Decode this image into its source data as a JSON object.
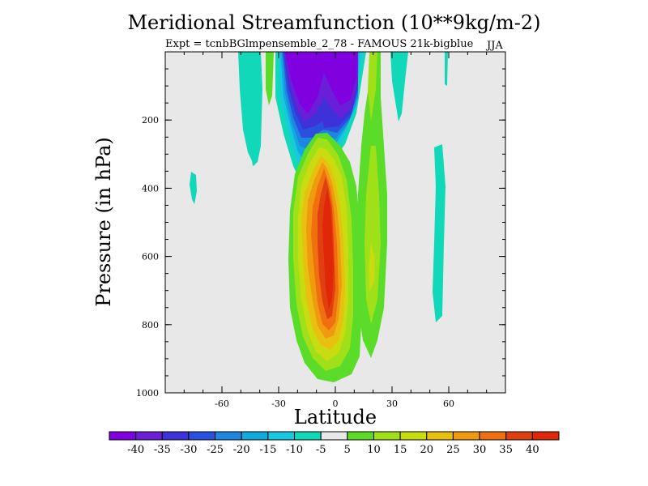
{
  "chart_data": {
    "type": "heatmap",
    "title": "Meridional Streamfunction (10**9kg/m-2)",
    "subtitle": "Expt = tcnbBGlmpensemble_2_78 - FAMOUS 21k-bigblue",
    "season": "JJA",
    "xlabel": "Latitude",
    "ylabel": "Pressure (in hPa)",
    "xlim": [
      -90,
      90
    ],
    "ylim": [
      1000,
      0
    ],
    "x_ticks": [
      -60,
      -30,
      0,
      30,
      60
    ],
    "y_ticks": [
      200,
      400,
      600,
      800,
      1000
    ],
    "colorbar": {
      "levels": [
        -40,
        -35,
        -30,
        -25,
        -20,
        -15,
        -10,
        -5,
        5,
        10,
        15,
        20,
        25,
        30,
        35,
        40
      ],
      "colors": [
        "#8000e0",
        "#6a1ed8",
        "#3c32d8",
        "#2a50e0",
        "#1e86e0",
        "#10aadc",
        "#18c8e0",
        "#10d8b8",
        "#e8e8e8",
        "#5adc28",
        "#a0e018",
        "#c8dc10",
        "#e8c010",
        "#f09a10",
        "#f07010",
        "#e04010",
        "#e02808"
      ]
    },
    "features": [
      {
        "name": "negative upper cell",
        "lat_center": -5,
        "p_top": 0,
        "p_bottom": 200,
        "min_value": -40
      },
      {
        "name": "positive tropical cell",
        "lat_center": 0,
        "p_top": 300,
        "p_bottom": 950,
        "max_value": 40
      },
      {
        "name": "southern hemisphere cell",
        "lat_center": -72,
        "p_top": 360,
        "p_bottom": 420,
        "value": -10
      },
      {
        "name": "northern hemisphere cell",
        "lat_center": 55,
        "p_top": 270,
        "p_bottom": 800,
        "value": -10
      }
    ]
  }
}
